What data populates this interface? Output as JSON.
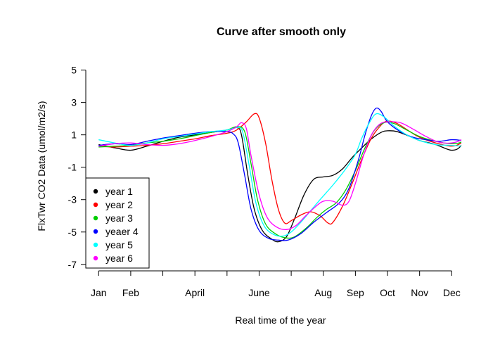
{
  "chart_data": {
    "type": "line",
    "title": "Curve after smooth only",
    "xlabel": "Real time of the year",
    "ylabel": "FlxTwr CO2 Data (umol/m2/s)",
    "xlim": [
      0.6,
      12.3
    ],
    "ylim": [
      -7.4,
      5.2
    ],
    "x_ticks": [
      {
        "label": "Jan",
        "x": 1
      },
      {
        "label": "Feb",
        "x": 2
      },
      {
        "label": "April",
        "x": 4
      },
      {
        "label": "June",
        "x": 6
      },
      {
        "label": "Aug",
        "x": 8
      },
      {
        "label": "Sep",
        "x": 9
      },
      {
        "label": "Oct",
        "x": 10
      },
      {
        "label": "Nov",
        "x": 11
      },
      {
        "label": "Dec",
        "x": 12
      }
    ],
    "x_minor_ticks": [
      3,
      5,
      7
    ],
    "y_ticks": [
      -7,
      -5,
      -3,
      -1,
      1,
      3,
      5
    ],
    "legend": {
      "position": "bottom-left",
      "entries": [
        "year 1",
        "year 2",
        "year 3",
        "yeaer 4",
        "year 5",
        "year 6"
      ]
    },
    "series": [
      {
        "name": "year 1",
        "color": "#000000",
        "points": [
          [
            1,
            0.4
          ],
          [
            1.5,
            0.2
          ],
          [
            2,
            0.05
          ],
          [
            2.5,
            0.3
          ],
          [
            3,
            0.6
          ],
          [
            3.5,
            0.85
          ],
          [
            4,
            1.0
          ],
          [
            4.5,
            1.15
          ],
          [
            5,
            1.3
          ],
          [
            5.3,
            1.45
          ],
          [
            5.45,
            1.0
          ],
          [
            5.65,
            -1.5
          ],
          [
            5.85,
            -3.6
          ],
          [
            6.1,
            -4.9
          ],
          [
            6.4,
            -5.45
          ],
          [
            6.6,
            -5.6
          ],
          [
            6.85,
            -5.3
          ],
          [
            7.1,
            -4.2
          ],
          [
            7.4,
            -2.7
          ],
          [
            7.7,
            -1.75
          ],
          [
            8,
            -1.6
          ],
          [
            8.3,
            -1.5
          ],
          [
            8.6,
            -1.1
          ],
          [
            8.9,
            -0.4
          ],
          [
            9.2,
            0.2
          ],
          [
            9.5,
            0.75
          ],
          [
            9.8,
            1.15
          ],
          [
            10,
            1.25
          ],
          [
            10.3,
            1.2
          ],
          [
            10.7,
            0.9
          ],
          [
            11,
            0.65
          ],
          [
            11.5,
            0.4
          ],
          [
            12,
            0.05
          ],
          [
            12.3,
            0.35
          ],
          [
            12.55,
            1.4
          ]
        ]
      },
      {
        "name": "year 2",
        "color": "#ff0000",
        "points": [
          [
            1,
            0.3
          ],
          [
            1.5,
            0.25
          ],
          [
            2,
            0.3
          ],
          [
            2.5,
            0.35
          ],
          [
            3,
            0.45
          ],
          [
            3.5,
            0.6
          ],
          [
            4,
            0.75
          ],
          [
            4.5,
            0.95
          ],
          [
            5,
            1.1
          ],
          [
            5.3,
            1.3
          ],
          [
            5.6,
            1.8
          ],
          [
            5.85,
            2.3
          ],
          [
            6,
            2.05
          ],
          [
            6.2,
            0.5
          ],
          [
            6.4,
            -1.8
          ],
          [
            6.6,
            -3.6
          ],
          [
            6.8,
            -4.45
          ],
          [
            7,
            -4.3
          ],
          [
            7.3,
            -3.95
          ],
          [
            7.6,
            -3.75
          ],
          [
            7.9,
            -4.0
          ],
          [
            8.15,
            -4.45
          ],
          [
            8.3,
            -4.4
          ],
          [
            8.6,
            -3.4
          ],
          [
            8.9,
            -2.0
          ],
          [
            9.2,
            -0.5
          ],
          [
            9.5,
            0.8
          ],
          [
            9.8,
            1.6
          ],
          [
            10,
            1.85
          ],
          [
            10.3,
            1.7
          ],
          [
            10.7,
            1.2
          ],
          [
            11,
            0.85
          ],
          [
            11.5,
            0.5
          ],
          [
            12,
            0.3
          ],
          [
            12.3,
            0.5
          ],
          [
            12.55,
            0.9
          ]
        ]
      },
      {
        "name": "year 3",
        "color": "#00cd00",
        "points": [
          [
            1,
            0.25
          ],
          [
            1.5,
            0.3
          ],
          [
            2,
            0.35
          ],
          [
            2.5,
            0.5
          ],
          [
            3,
            0.6
          ],
          [
            3.5,
            0.75
          ],
          [
            4,
            0.95
          ],
          [
            4.5,
            1.15
          ],
          [
            5,
            1.3
          ],
          [
            5.3,
            1.5
          ],
          [
            5.55,
            1.2
          ],
          [
            5.75,
            -0.8
          ],
          [
            5.95,
            -3.0
          ],
          [
            6.2,
            -4.5
          ],
          [
            6.5,
            -5.1
          ],
          [
            6.8,
            -5.35
          ],
          [
            7.1,
            -5.3
          ],
          [
            7.5,
            -4.7
          ],
          [
            7.8,
            -4.1
          ],
          [
            8.1,
            -3.6
          ],
          [
            8.4,
            -3.2
          ],
          [
            8.7,
            -2.4
          ],
          [
            9,
            -1.2
          ],
          [
            9.3,
            0.2
          ],
          [
            9.6,
            1.3
          ],
          [
            9.9,
            1.75
          ],
          [
            10.2,
            1.7
          ],
          [
            10.6,
            1.3
          ],
          [
            11,
            0.9
          ],
          [
            11.5,
            0.6
          ],
          [
            12,
            0.45
          ],
          [
            12.3,
            0.55
          ],
          [
            12.55,
            0.95
          ]
        ]
      },
      {
        "name": "yeaer 4",
        "color": "#0000ff",
        "points": [
          [
            1,
            0.35
          ],
          [
            1.5,
            0.45
          ],
          [
            2,
            0.4
          ],
          [
            2.5,
            0.6
          ],
          [
            3,
            0.8
          ],
          [
            3.5,
            0.95
          ],
          [
            4,
            1.1
          ],
          [
            4.5,
            1.2
          ],
          [
            5,
            1.2
          ],
          [
            5.2,
            1.05
          ],
          [
            5.35,
            0.5
          ],
          [
            5.55,
            -1.5
          ],
          [
            5.75,
            -3.6
          ],
          [
            6,
            -4.9
          ],
          [
            6.3,
            -5.4
          ],
          [
            6.6,
            -5.5
          ],
          [
            6.9,
            -5.5
          ],
          [
            7.3,
            -5.1
          ],
          [
            7.7,
            -4.4
          ],
          [
            8.1,
            -3.8
          ],
          [
            8.5,
            -3.2
          ],
          [
            8.8,
            -2.3
          ],
          [
            9.1,
            -0.5
          ],
          [
            9.3,
            1.0
          ],
          [
            9.5,
            2.2
          ],
          [
            9.65,
            2.65
          ],
          [
            9.8,
            2.45
          ],
          [
            10,
            1.8
          ],
          [
            10.4,
            1.2
          ],
          [
            10.8,
            0.85
          ],
          [
            11.2,
            0.7
          ],
          [
            11.6,
            0.6
          ],
          [
            12,
            0.7
          ],
          [
            12.3,
            0.65
          ],
          [
            12.55,
            0.5
          ]
        ]
      },
      {
        "name": "year 5",
        "color": "#00ffff",
        "points": [
          [
            1,
            0.7
          ],
          [
            1.5,
            0.5
          ],
          [
            2,
            0.35
          ],
          [
            2.5,
            0.5
          ],
          [
            3,
            0.75
          ],
          [
            3.5,
            0.9
          ],
          [
            4,
            1.05
          ],
          [
            4.5,
            1.2
          ],
          [
            5,
            1.3
          ],
          [
            5.35,
            1.45
          ],
          [
            5.5,
            1.1
          ],
          [
            5.7,
            -1.0
          ],
          [
            5.9,
            -3.2
          ],
          [
            6.15,
            -4.6
          ],
          [
            6.45,
            -5.15
          ],
          [
            6.75,
            -5.25
          ],
          [
            7,
            -5.0
          ],
          [
            7.3,
            -4.4
          ],
          [
            7.6,
            -3.7
          ],
          [
            7.9,
            -3.0
          ],
          [
            8.3,
            -2.1
          ],
          [
            8.7,
            -1.1
          ],
          [
            9,
            -0.2
          ],
          [
            9.2,
            0.8
          ],
          [
            9.45,
            1.8
          ],
          [
            9.65,
            2.3
          ],
          [
            9.9,
            2.1
          ],
          [
            10.2,
            1.55
          ],
          [
            10.6,
            1.0
          ],
          [
            11,
            0.65
          ],
          [
            11.5,
            0.4
          ],
          [
            12,
            0.35
          ],
          [
            12.3,
            0.3
          ],
          [
            12.55,
            0.3
          ]
        ]
      },
      {
        "name": "year 6",
        "color": "#ff00ff",
        "points": [
          [
            1,
            0.3
          ],
          [
            1.5,
            0.45
          ],
          [
            2,
            0.5
          ],
          [
            2.5,
            0.4
          ],
          [
            3,
            0.35
          ],
          [
            3.5,
            0.45
          ],
          [
            4,
            0.65
          ],
          [
            4.5,
            0.9
          ],
          [
            5,
            1.2
          ],
          [
            5.3,
            1.5
          ],
          [
            5.45,
            1.75
          ],
          [
            5.6,
            1.4
          ],
          [
            5.75,
            -0.3
          ],
          [
            6,
            -2.7
          ],
          [
            6.25,
            -4.1
          ],
          [
            6.55,
            -4.7
          ],
          [
            6.85,
            -4.85
          ],
          [
            7.15,
            -4.6
          ],
          [
            7.45,
            -4.0
          ],
          [
            7.75,
            -3.45
          ],
          [
            8,
            -3.1
          ],
          [
            8.3,
            -3.1
          ],
          [
            8.6,
            -3.35
          ],
          [
            8.8,
            -3.1
          ],
          [
            9,
            -2.0
          ],
          [
            9.25,
            -0.3
          ],
          [
            9.5,
            1.0
          ],
          [
            9.75,
            1.65
          ],
          [
            10,
            1.8
          ],
          [
            10.4,
            1.75
          ],
          [
            10.8,
            1.35
          ],
          [
            11.2,
            0.9
          ],
          [
            11.6,
            0.55
          ],
          [
            12,
            0.5
          ],
          [
            12.3,
            0.7
          ],
          [
            12.55,
            1.2
          ]
        ]
      }
    ]
  }
}
